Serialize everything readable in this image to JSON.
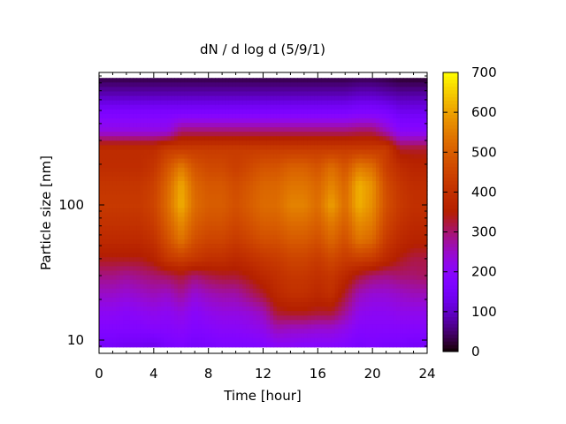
{
  "chart_data": {
    "type": "heatmap",
    "title": "dN / d log d (5/9/1)",
    "xlabel": "Time [hour]",
    "ylabel": "Particle size [nm]",
    "x_scale": "linear",
    "y_scale": "log",
    "xlim": [
      0,
      24
    ],
    "ylim": [
      8.5,
      940
    ],
    "x_ticks": [
      0,
      4,
      8,
      12,
      16,
      20,
      24
    ],
    "x_tick_labels": [
      "0",
      "4",
      "8",
      "12",
      "16",
      "20",
      "24"
    ],
    "y_ticks": [
      10,
      100
    ],
    "y_tick_labels": [
      "10",
      "100"
    ],
    "colorbar": {
      "range": [
        0,
        700
      ],
      "ticks": [
        0,
        100,
        200,
        300,
        400,
        500,
        600,
        700
      ],
      "tick_labels": [
        "0",
        "100",
        "200",
        "300",
        "400",
        "500",
        "600",
        "700"
      ],
      "palette": "black-purple-red-orange-yellow"
    },
    "x": [
      0,
      1,
      2,
      3,
      4,
      5,
      6,
      7,
      8,
      9,
      10,
      11,
      12,
      13,
      14,
      15,
      16,
      17,
      18,
      19,
      20,
      21,
      22,
      23,
      24
    ],
    "y": [
      9,
      12,
      16,
      22,
      30,
      40,
      55,
      75,
      100,
      140,
      190,
      260,
      350,
      480,
      650,
      870
    ],
    "values": [
      [
        150,
        150,
        140,
        140,
        130,
        160,
        170,
        150,
        160,
        170,
        170,
        170,
        180,
        200,
        200,
        190,
        190,
        190,
        180,
        160,
        170,
        160,
        160,
        150,
        150
      ],
      [
        180,
        180,
        180,
        180,
        190,
        190,
        200,
        180,
        190,
        200,
        200,
        210,
        220,
        260,
        250,
        250,
        240,
        240,
        220,
        190,
        190,
        190,
        190,
        190,
        190
      ],
      [
        210,
        210,
        200,
        210,
        220,
        210,
        230,
        200,
        220,
        230,
        230,
        240,
        260,
        330,
        340,
        340,
        330,
        330,
        280,
        220,
        210,
        210,
        220,
        220,
        220
      ],
      [
        250,
        250,
        240,
        250,
        260,
        250,
        280,
        240,
        260,
        270,
        270,
        300,
        330,
        380,
        400,
        400,
        380,
        400,
        330,
        260,
        240,
        240,
        250,
        260,
        260
      ],
      [
        290,
        290,
        280,
        290,
        300,
        310,
        330,
        300,
        320,
        330,
        330,
        350,
        380,
        400,
        420,
        420,
        400,
        420,
        380,
        330,
        300,
        290,
        300,
        300,
        310
      ],
      [
        340,
        340,
        340,
        340,
        360,
        420,
        440,
        420,
        400,
        400,
        380,
        400,
        420,
        430,
        450,
        450,
        430,
        460,
        430,
        440,
        430,
        380,
        340,
        320,
        320
      ],
      [
        383,
        383,
        383,
        383,
        405,
        473,
        540,
        473,
        450,
        450,
        428,
        450,
        473,
        473,
        495,
        495,
        473,
        518,
        473,
        540,
        518,
        428,
        383,
        360,
        360
      ],
      [
        408,
        408,
        408,
        408,
        432,
        504,
        576,
        504,
        480,
        480,
        456,
        480,
        504,
        504,
        528,
        528,
        504,
        552,
        504,
        576,
        552,
        456,
        408,
        384,
        384
      ],
      [
        425,
        425,
        425,
        425,
        450,
        525,
        620,
        525,
        500,
        500,
        475,
        500,
        525,
        525,
        560,
        560,
        525,
        600,
        525,
        620,
        575,
        475,
        425,
        400,
        400
      ],
      [
        417,
        417,
        417,
        417,
        441,
        515,
        610,
        515,
        490,
        490,
        466,
        490,
        515,
        515,
        539,
        539,
        515,
        564,
        515,
        620,
        580,
        466,
        417,
        392,
        392
      ],
      [
        391,
        391,
        391,
        391,
        414,
        483,
        552,
        483,
        460,
        460,
        437,
        460,
        483,
        483,
        506,
        506,
        483,
        529,
        483,
        552,
        529,
        437,
        391,
        368,
        368
      ],
      [
        390,
        390,
        390,
        390,
        390,
        430,
        430,
        430,
        430,
        430,
        430,
        430,
        430,
        430,
        430,
        430,
        430,
        430,
        430,
        430,
        430,
        430,
        330,
        330,
        330
      ],
      [
        230,
        230,
        230,
        230,
        230,
        230,
        300,
        300,
        300,
        300,
        300,
        300,
        300,
        300,
        300,
        300,
        300,
        300,
        300,
        310,
        310,
        260,
        200,
        200,
        200
      ],
      [
        170,
        170,
        170,
        170,
        170,
        170,
        170,
        170,
        170,
        170,
        170,
        170,
        170,
        170,
        170,
        170,
        170,
        170,
        170,
        180,
        180,
        170,
        140,
        140,
        140
      ],
      [
        90,
        90,
        90,
        90,
        90,
        90,
        90,
        90,
        90,
        90,
        90,
        90,
        90,
        90,
        90,
        90,
        90,
        90,
        90,
        100,
        100,
        90,
        80,
        80,
        80
      ],
      [
        30,
        30,
        30,
        30,
        30,
        30,
        30,
        30,
        30,
        30,
        30,
        30,
        30,
        30,
        30,
        30,
        30,
        30,
        30,
        35,
        35,
        30,
        20,
        20,
        20
      ]
    ]
  }
}
